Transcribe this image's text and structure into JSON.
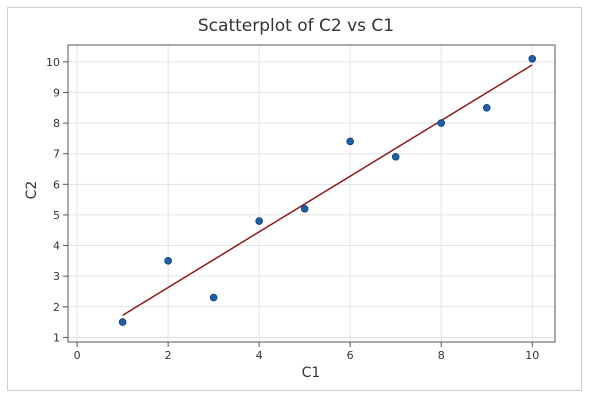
{
  "chart_data": {
    "type": "scatter",
    "title": "Scatterplot of C2 vs C1",
    "xlabel": "C1",
    "ylabel": "C2",
    "xlim": [
      -0.2,
      10.5
    ],
    "ylim": [
      0.85,
      10.55
    ],
    "xticks": [
      0,
      2,
      4,
      6,
      8,
      10
    ],
    "yticks": [
      1,
      2,
      3,
      4,
      5,
      6,
      7,
      8,
      9,
      10
    ],
    "grid": true,
    "series": [
      {
        "x": [
          1,
          2,
          3,
          4,
          5,
          6,
          7,
          8,
          9,
          10
        ],
        "y": [
          1.5,
          3.5,
          2.3,
          4.8,
          5.2,
          7.4,
          6.9,
          8.0,
          8.5,
          10.1
        ]
      }
    ],
    "fit_line": {
      "x": [
        1,
        10
      ],
      "y": [
        1.72,
        9.9
      ]
    },
    "colors": {
      "points": "#1f5fa8",
      "points_edge": "#0f3e73",
      "fit_line": "#8b1a1a",
      "grid": "#e3e3e3",
      "plot_border": "#555555"
    }
  }
}
